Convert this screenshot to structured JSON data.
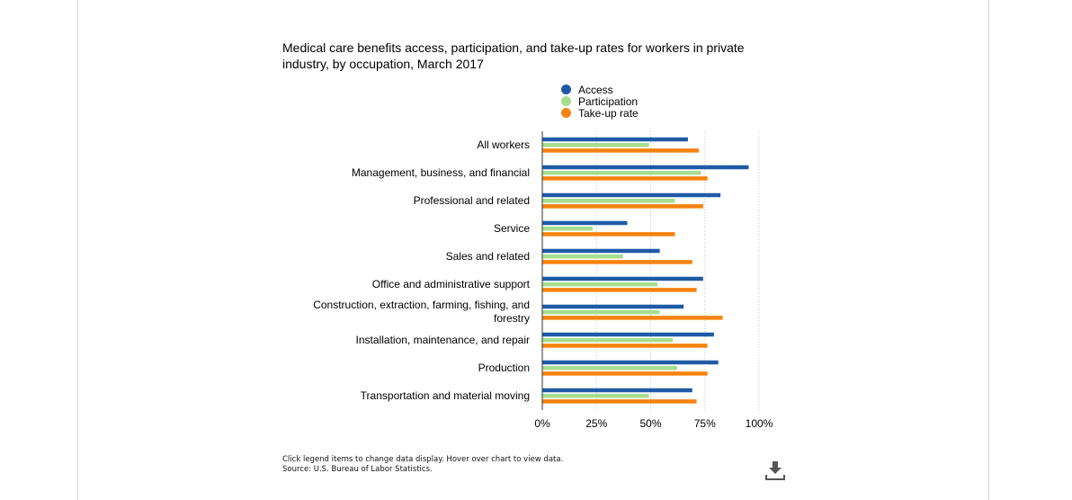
{
  "chart_data": {
    "type": "bar",
    "orientation": "horizontal",
    "title": "Medical care benefits access, participation, and take-up rates for workers in private industry, by occupation, March 2017",
    "categories": [
      "All workers",
      "Management, business, and financial",
      "Professional and related",
      "Service",
      "Sales and related",
      "Office and administrative support",
      "Construction, extraction, farming, fishing, and forestry",
      "Installation, maintenance, and repair",
      "Production",
      "Transportation and material moving"
    ],
    "series": [
      {
        "name": "Access",
        "color": "#1f5aa6",
        "values": [
          67,
          95,
          82,
          39,
          54,
          74,
          65,
          79,
          81,
          69
        ]
      },
      {
        "name": "Participation",
        "color": "#a6de8f",
        "values": [
          49,
          73,
          61,
          23,
          37,
          53,
          54,
          60,
          62,
          49
        ]
      },
      {
        "name": "Take-up rate",
        "color": "#f7820f",
        "values": [
          72,
          76,
          74,
          61,
          69,
          71,
          83,
          76,
          76,
          71
        ]
      }
    ],
    "xlim": [
      0,
      100
    ],
    "xticks": [
      "0%",
      "25%",
      "50%",
      "75%",
      "100%"
    ],
    "grid": true,
    "legend_position": "top"
  },
  "footer": {
    "note": "Click legend items to change data display. Hover over chart to view data.",
    "source": "Source: U.S. Bureau of Labor Statistics."
  },
  "icons": {
    "download": "download-icon"
  }
}
